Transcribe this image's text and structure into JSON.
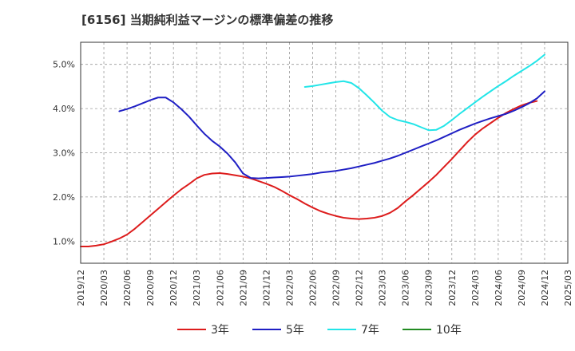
{
  "chart_data": {
    "type": "line",
    "title": "[6156]  当期純利益マージンの標準偏差の推移",
    "xlabel": "",
    "ylabel": "",
    "y_axis": {
      "min": 0.5,
      "max": 5.5,
      "ticks": [
        1.0,
        2.0,
        3.0,
        4.0,
        5.0
      ],
      "tick_format": "%",
      "grid": true
    },
    "x_axis": {
      "min": "2019/12",
      "max": "2025/03",
      "tick_labels": [
        "2019/12",
        "2020/03",
        "2020/06",
        "2020/09",
        "2020/12",
        "2021/03",
        "2021/06",
        "2021/09",
        "2021/12",
        "2022/03",
        "2022/06",
        "2022/09",
        "2022/12",
        "2023/03",
        "2023/06",
        "2023/09",
        "2023/12",
        "2024/03",
        "2024/06",
        "2024/09",
        "2024/12",
        "2025/03"
      ],
      "grid": true
    },
    "legend_position": "bottom",
    "series": [
      {
        "name": "3年",
        "color": "#dd1c1c",
        "points": [
          [
            "2019/12",
            0.88
          ],
          [
            "2020/01",
            0.88
          ],
          [
            "2020/02",
            0.9
          ],
          [
            "2020/03",
            0.93
          ],
          [
            "2020/04",
            0.99
          ],
          [
            "2020/05",
            1.06
          ],
          [
            "2020/06",
            1.15
          ],
          [
            "2020/07",
            1.28
          ],
          [
            "2020/08",
            1.43
          ],
          [
            "2020/09",
            1.58
          ],
          [
            "2020/10",
            1.73
          ],
          [
            "2020/11",
            1.88
          ],
          [
            "2020/12",
            2.03
          ],
          [
            "2021/01",
            2.17
          ],
          [
            "2021/02",
            2.29
          ],
          [
            "2021/03",
            2.42
          ],
          [
            "2021/04",
            2.5
          ],
          [
            "2021/05",
            2.53
          ],
          [
            "2021/06",
            2.54
          ],
          [
            "2021/07",
            2.52
          ],
          [
            "2021/08",
            2.49
          ],
          [
            "2021/09",
            2.46
          ],
          [
            "2021/10",
            2.42
          ],
          [
            "2021/11",
            2.36
          ],
          [
            "2021/12",
            2.3
          ],
          [
            "2022/01",
            2.23
          ],
          [
            "2022/02",
            2.14
          ],
          [
            "2022/03",
            2.04
          ],
          [
            "2022/04",
            1.95
          ],
          [
            "2022/05",
            1.85
          ],
          [
            "2022/06",
            1.76
          ],
          [
            "2022/07",
            1.68
          ],
          [
            "2022/08",
            1.62
          ],
          [
            "2022/09",
            1.57
          ],
          [
            "2022/10",
            1.53
          ],
          [
            "2022/11",
            1.51
          ],
          [
            "2022/12",
            1.5
          ],
          [
            "2023/01",
            1.51
          ],
          [
            "2023/02",
            1.53
          ],
          [
            "2023/03",
            1.57
          ],
          [
            "2023/04",
            1.64
          ],
          [
            "2023/05",
            1.75
          ],
          [
            "2023/06",
            1.9
          ],
          [
            "2023/07",
            2.04
          ],
          [
            "2023/08",
            2.19
          ],
          [
            "2023/09",
            2.34
          ],
          [
            "2023/10",
            2.5
          ],
          [
            "2023/11",
            2.68
          ],
          [
            "2023/12",
            2.86
          ],
          [
            "2024/01",
            3.05
          ],
          [
            "2024/02",
            3.24
          ],
          [
            "2024/03",
            3.41
          ],
          [
            "2024/04",
            3.55
          ],
          [
            "2024/05",
            3.67
          ],
          [
            "2024/06",
            3.79
          ],
          [
            "2024/07",
            3.9
          ],
          [
            "2024/08",
            3.99
          ],
          [
            "2024/09",
            4.07
          ],
          [
            "2024/10",
            4.13
          ],
          [
            "2024/11",
            4.17
          ]
        ]
      },
      {
        "name": "5年",
        "color": "#1f1fc4",
        "points": [
          [
            "2020/05",
            3.94
          ],
          [
            "2020/06",
            3.99
          ],
          [
            "2020/07",
            4.05
          ],
          [
            "2020/08",
            4.12
          ],
          [
            "2020/09",
            4.19
          ],
          [
            "2020/10",
            4.25
          ],
          [
            "2020/11",
            4.25
          ],
          [
            "2020/12",
            4.14
          ],
          [
            "2021/01",
            3.99
          ],
          [
            "2021/02",
            3.82
          ],
          [
            "2021/03",
            3.62
          ],
          [
            "2021/04",
            3.43
          ],
          [
            "2021/05",
            3.27
          ],
          [
            "2021/06",
            3.14
          ],
          [
            "2021/07",
            2.98
          ],
          [
            "2021/08",
            2.78
          ],
          [
            "2021/09",
            2.53
          ],
          [
            "2021/10",
            2.43
          ],
          [
            "2021/11",
            2.42
          ],
          [
            "2021/12",
            2.43
          ],
          [
            "2022/01",
            2.44
          ],
          [
            "2022/02",
            2.45
          ],
          [
            "2022/03",
            2.46
          ],
          [
            "2022/04",
            2.48
          ],
          [
            "2022/05",
            2.5
          ],
          [
            "2022/06",
            2.52
          ],
          [
            "2022/07",
            2.55
          ],
          [
            "2022/08",
            2.57
          ],
          [
            "2022/09",
            2.59
          ],
          [
            "2022/10",
            2.62
          ],
          [
            "2022/11",
            2.65
          ],
          [
            "2022/12",
            2.69
          ],
          [
            "2023/01",
            2.73
          ],
          [
            "2023/02",
            2.77
          ],
          [
            "2023/03",
            2.82
          ],
          [
            "2023/04",
            2.87
          ],
          [
            "2023/05",
            2.93
          ],
          [
            "2023/06",
            3.0
          ],
          [
            "2023/07",
            3.07
          ],
          [
            "2023/08",
            3.14
          ],
          [
            "2023/09",
            3.21
          ],
          [
            "2023/10",
            3.28
          ],
          [
            "2023/11",
            3.36
          ],
          [
            "2023/12",
            3.44
          ],
          [
            "2024/01",
            3.52
          ],
          [
            "2024/02",
            3.59
          ],
          [
            "2024/03",
            3.66
          ],
          [
            "2024/04",
            3.72
          ],
          [
            "2024/05",
            3.78
          ],
          [
            "2024/06",
            3.83
          ],
          [
            "2024/07",
            3.88
          ],
          [
            "2024/08",
            3.95
          ],
          [
            "2024/09",
            4.03
          ],
          [
            "2024/10",
            4.12
          ],
          [
            "2024/11",
            4.23
          ],
          [
            "2024/12",
            4.39
          ]
        ]
      },
      {
        "name": "7年",
        "color": "#22e5e8",
        "points": [
          [
            "2022/05",
            4.49
          ],
          [
            "2022/06",
            4.51
          ],
          [
            "2022/07",
            4.54
          ],
          [
            "2022/08",
            4.57
          ],
          [
            "2022/09",
            4.6
          ],
          [
            "2022/10",
            4.62
          ],
          [
            "2022/11",
            4.58
          ],
          [
            "2022/12",
            4.46
          ],
          [
            "2023/01",
            4.3
          ],
          [
            "2023/02",
            4.13
          ],
          [
            "2023/03",
            3.95
          ],
          [
            "2023/04",
            3.81
          ],
          [
            "2023/05",
            3.74
          ],
          [
            "2023/06",
            3.7
          ],
          [
            "2023/07",
            3.65
          ],
          [
            "2023/08",
            3.58
          ],
          [
            "2023/09",
            3.51
          ],
          [
            "2023/10",
            3.52
          ],
          [
            "2023/11",
            3.61
          ],
          [
            "2023/12",
            3.74
          ],
          [
            "2024/01",
            3.88
          ],
          [
            "2024/02",
            4.01
          ],
          [
            "2024/03",
            4.14
          ],
          [
            "2024/04",
            4.27
          ],
          [
            "2024/05",
            4.39
          ],
          [
            "2024/06",
            4.51
          ],
          [
            "2024/07",
            4.62
          ],
          [
            "2024/08",
            4.74
          ],
          [
            "2024/09",
            4.85
          ],
          [
            "2024/10",
            4.96
          ],
          [
            "2024/11",
            5.08
          ],
          [
            "2024/12",
            5.22
          ]
        ]
      },
      {
        "name": "10年",
        "color": "#228b22",
        "points": []
      }
    ]
  }
}
